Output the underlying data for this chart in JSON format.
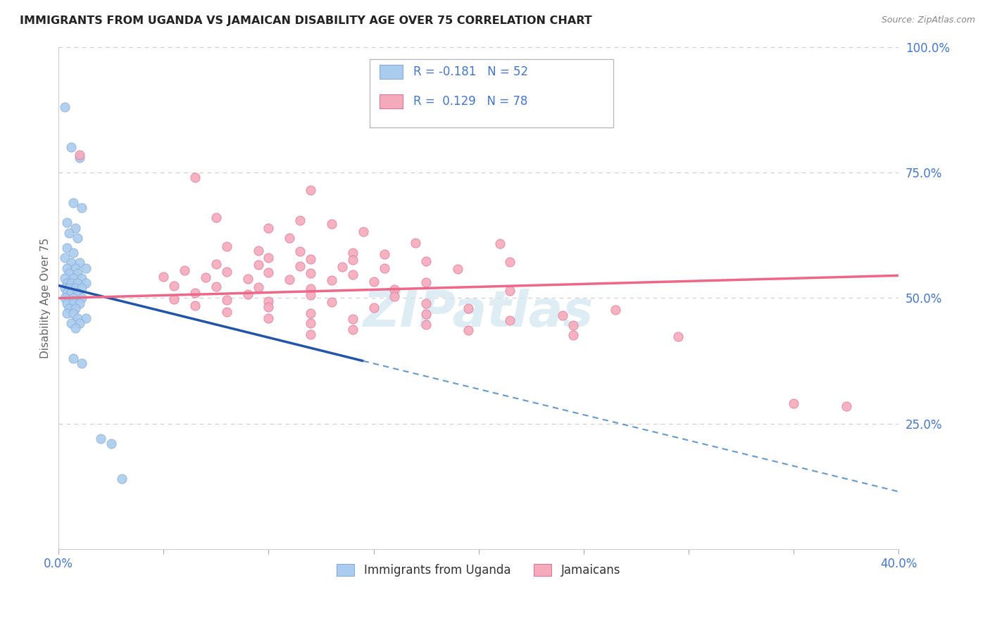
{
  "title": "IMMIGRANTS FROM UGANDA VS JAMAICAN DISABILITY AGE OVER 75 CORRELATION CHART",
  "source": "Source: ZipAtlas.com",
  "ylabel": "Disability Age Over 75",
  "xlim": [
    0.0,
    0.4
  ],
  "ylim": [
    0.0,
    1.0
  ],
  "xticks": [
    0.0,
    0.05,
    0.1,
    0.15,
    0.2,
    0.25,
    0.3,
    0.35,
    0.4
  ],
  "yticks_right": [
    0.25,
    0.5,
    0.75,
    1.0
  ],
  "yticklabels_right": [
    "25.0%",
    "50.0%",
    "75.0%",
    "100.0%"
  ],
  "uganda_color": "#aaccee",
  "jamaican_color": "#f5aabb",
  "trend_uganda_solid_color": "#2255aa",
  "trend_uganda_dash_color": "#6699cc",
  "trend_jamaican_color": "#ee6688",
  "legend_text_color": "#4477cc",
  "axis_tick_color": "#4477cc",
  "grid_color": "#cccccc",
  "watermark_color": "#d0e4f0",
  "uganda_scatter": [
    [
      0.003,
      0.88
    ],
    [
      0.006,
      0.8
    ],
    [
      0.01,
      0.78
    ],
    [
      0.007,
      0.69
    ],
    [
      0.011,
      0.68
    ],
    [
      0.004,
      0.65
    ],
    [
      0.008,
      0.64
    ],
    [
      0.005,
      0.63
    ],
    [
      0.009,
      0.62
    ],
    [
      0.004,
      0.6
    ],
    [
      0.007,
      0.59
    ],
    [
      0.003,
      0.58
    ],
    [
      0.006,
      0.57
    ],
    [
      0.01,
      0.57
    ],
    [
      0.004,
      0.56
    ],
    [
      0.008,
      0.56
    ],
    [
      0.013,
      0.56
    ],
    [
      0.005,
      0.55
    ],
    [
      0.009,
      0.55
    ],
    [
      0.003,
      0.54
    ],
    [
      0.007,
      0.54
    ],
    [
      0.011,
      0.54
    ],
    [
      0.004,
      0.53
    ],
    [
      0.006,
      0.53
    ],
    [
      0.009,
      0.53
    ],
    [
      0.013,
      0.53
    ],
    [
      0.003,
      0.52
    ],
    [
      0.005,
      0.52
    ],
    [
      0.008,
      0.52
    ],
    [
      0.011,
      0.52
    ],
    [
      0.004,
      0.51
    ],
    [
      0.006,
      0.51
    ],
    [
      0.009,
      0.51
    ],
    [
      0.003,
      0.5
    ],
    [
      0.007,
      0.5
    ],
    [
      0.011,
      0.5
    ],
    [
      0.004,
      0.49
    ],
    [
      0.007,
      0.49
    ],
    [
      0.01,
      0.49
    ],
    [
      0.005,
      0.48
    ],
    [
      0.008,
      0.48
    ],
    [
      0.004,
      0.47
    ],
    [
      0.007,
      0.47
    ],
    [
      0.009,
      0.46
    ],
    [
      0.013,
      0.46
    ],
    [
      0.006,
      0.45
    ],
    [
      0.01,
      0.45
    ],
    [
      0.008,
      0.44
    ],
    [
      0.007,
      0.38
    ],
    [
      0.011,
      0.37
    ],
    [
      0.02,
      0.22
    ],
    [
      0.025,
      0.21
    ],
    [
      0.03,
      0.14
    ]
  ],
  "jamaican_scatter": [
    [
      0.01,
      0.785
    ],
    [
      0.065,
      0.74
    ],
    [
      0.12,
      0.715
    ],
    [
      0.075,
      0.66
    ],
    [
      0.115,
      0.655
    ],
    [
      0.13,
      0.648
    ],
    [
      0.1,
      0.64
    ],
    [
      0.145,
      0.632
    ],
    [
      0.11,
      0.62
    ],
    [
      0.17,
      0.61
    ],
    [
      0.21,
      0.608
    ],
    [
      0.08,
      0.603
    ],
    [
      0.095,
      0.595
    ],
    [
      0.115,
      0.593
    ],
    [
      0.14,
      0.59
    ],
    [
      0.155,
      0.587
    ],
    [
      0.1,
      0.58
    ],
    [
      0.12,
      0.578
    ],
    [
      0.14,
      0.576
    ],
    [
      0.175,
      0.574
    ],
    [
      0.215,
      0.572
    ],
    [
      0.075,
      0.568
    ],
    [
      0.095,
      0.566
    ],
    [
      0.115,
      0.564
    ],
    [
      0.135,
      0.562
    ],
    [
      0.155,
      0.56
    ],
    [
      0.19,
      0.558
    ],
    [
      0.06,
      0.555
    ],
    [
      0.08,
      0.553
    ],
    [
      0.1,
      0.551
    ],
    [
      0.12,
      0.549
    ],
    [
      0.14,
      0.547
    ],
    [
      0.05,
      0.543
    ],
    [
      0.07,
      0.541
    ],
    [
      0.09,
      0.539
    ],
    [
      0.11,
      0.537
    ],
    [
      0.13,
      0.535
    ],
    [
      0.15,
      0.533
    ],
    [
      0.175,
      0.531
    ],
    [
      0.055,
      0.525
    ],
    [
      0.075,
      0.523
    ],
    [
      0.095,
      0.521
    ],
    [
      0.12,
      0.519
    ],
    [
      0.16,
      0.517
    ],
    [
      0.215,
      0.515
    ],
    [
      0.065,
      0.51
    ],
    [
      0.09,
      0.508
    ],
    [
      0.12,
      0.506
    ],
    [
      0.16,
      0.504
    ],
    [
      0.055,
      0.498
    ],
    [
      0.08,
      0.496
    ],
    [
      0.1,
      0.494
    ],
    [
      0.13,
      0.492
    ],
    [
      0.175,
      0.49
    ],
    [
      0.065,
      0.485
    ],
    [
      0.1,
      0.483
    ],
    [
      0.15,
      0.481
    ],
    [
      0.195,
      0.479
    ],
    [
      0.265,
      0.477
    ],
    [
      0.08,
      0.472
    ],
    [
      0.12,
      0.47
    ],
    [
      0.175,
      0.468
    ],
    [
      0.24,
      0.466
    ],
    [
      0.1,
      0.46
    ],
    [
      0.14,
      0.458
    ],
    [
      0.215,
      0.456
    ],
    [
      0.12,
      0.45
    ],
    [
      0.175,
      0.448
    ],
    [
      0.245,
      0.446
    ],
    [
      0.14,
      0.438
    ],
    [
      0.195,
      0.436
    ],
    [
      0.12,
      0.428
    ],
    [
      0.245,
      0.426
    ],
    [
      0.295,
      0.424
    ],
    [
      0.35,
      0.29
    ],
    [
      0.375,
      0.285
    ]
  ],
  "ug_trend_x1": 0.0,
  "ug_trend_y1": 0.525,
  "ug_trend_x2": 0.145,
  "ug_trend_y2": 0.375,
  "ug_trend_x3": 0.4,
  "ug_trend_y3": 0.115,
  "jm_trend_x1": 0.0,
  "jm_trend_y1": 0.5,
  "jm_trend_x2": 0.4,
  "jm_trend_y2": 0.545
}
